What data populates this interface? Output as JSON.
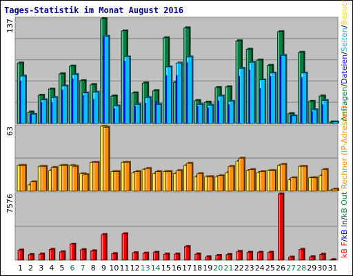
{
  "title": "Tages-Statistik im Monat August 2016",
  "legend_right": {
    "top": [
      {
        "text": "Anfragen",
        "color": "#008040"
      },
      {
        "text": "/",
        "color": "#000000"
      },
      {
        "text": "Dateien",
        "color": "#0000ff"
      },
      {
        "text": "/",
        "color": "#000000"
      },
      {
        "text": "Seiten",
        "color": "#00c0ff"
      },
      {
        "text": "/",
        "color": "#000000"
      },
      {
        "text": "Besuche",
        "color": "#ffd700"
      }
    ],
    "mid": [
      {
        "text": "Rechner (IP-Adressen)",
        "color": "#ff8c00"
      }
    ],
    "bottom": [
      {
        "text": "kB F",
        "color": "#ff0000"
      },
      {
        "text": "/",
        "color": "#000000"
      },
      {
        "text": "kB In",
        "color": "#0000ff"
      },
      {
        "text": "/",
        "color": "#000000"
      },
      {
        "text": "kB Out",
        "color": "#008040"
      }
    ]
  },
  "colors": {
    "hits": "#008040",
    "files": "#0000ff",
    "pages": "#00c0ff",
    "visits": "#ffd700",
    "sites": "#ff8c00",
    "kbytes": "#ff0000",
    "weekend_label": "#008040",
    "weekday_label": "#000000"
  },
  "chart_data": [
    {
      "type": "bar",
      "ylabel": "137",
      "ylim": [
        0,
        137
      ],
      "categories": [
        "1",
        "2",
        "3",
        "4",
        "5",
        "6",
        "7",
        "8",
        "9",
        "10",
        "11",
        "12",
        "13",
        "14",
        "15",
        "16",
        "17",
        "18",
        "19",
        "20",
        "21",
        "22",
        "23",
        "24",
        "25",
        "26",
        "27",
        "28",
        "29",
        "30",
        "31"
      ],
      "series": [
        {
          "name": "Anfragen",
          "values": [
            79,
            15,
            37,
            45,
            65,
            75,
            56,
            51,
            137,
            36,
            121,
            40,
            53,
            43,
            112,
            54,
            125,
            30,
            28,
            47,
            48,
            108,
            97,
            83,
            76,
            120,
            13,
            93,
            29,
            36,
            2
          ]
        },
        {
          "name": "Dateien",
          "values": [
            56,
            13,
            28,
            28,
            44,
            59,
            37,
            32,
            113,
            20,
            82,
            23,
            27,
            30,
            63,
            63,
            80,
            23,
            21,
            30,
            25,
            62,
            70,
            46,
            62,
            88,
            11,
            60,
            16,
            25,
            1
          ]
        },
        {
          "name": "Seiten",
          "values": [
            62,
            12,
            31,
            34,
            49,
            64,
            40,
            41,
            114,
            23,
            87,
            25,
            34,
            25,
            74,
            79,
            87,
            25,
            24,
            36,
            29,
            72,
            80,
            57,
            66,
            89,
            10,
            66,
            18,
            30,
            2
          ]
        }
      ]
    },
    {
      "type": "bar",
      "ylabel": "63",
      "ylim": [
        0,
        63
      ],
      "categories": [
        "1",
        "2",
        "3",
        "4",
        "5",
        "6",
        "7",
        "8",
        "9",
        "10",
        "11",
        "12",
        "13",
        "14",
        "15",
        "16",
        "17",
        "18",
        "19",
        "20",
        "21",
        "22",
        "23",
        "24",
        "25",
        "26",
        "27",
        "28",
        "29",
        "30",
        "31"
      ],
      "series": [
        {
          "name": "Besuche",
          "values": [
            25,
            6,
            24,
            20,
            25,
            25,
            17,
            28,
            63,
            19,
            28,
            18,
            21,
            17,
            19,
            17,
            25,
            14,
            14,
            14,
            18,
            29,
            20,
            18,
            20,
            25,
            11,
            24,
            13,
            15,
            1
          ]
        },
        {
          "name": "Rechner (IP-Adressen)",
          "values": [
            25,
            9,
            24,
            23,
            25,
            24,
            16,
            28,
            62,
            19,
            28,
            19,
            22,
            19,
            19,
            20,
            27,
            17,
            14,
            15,
            24,
            32,
            21,
            19,
            20,
            26,
            13,
            24,
            13,
            21,
            2
          ]
        }
      ]
    },
    {
      "type": "bar",
      "ylabel": "7576",
      "ylim": [
        0,
        7576
      ],
      "categories": [
        "1",
        "2",
        "3",
        "4",
        "5",
        "6",
        "7",
        "8",
        "9",
        "10",
        "11",
        "12",
        "13",
        "14",
        "15",
        "16",
        "17",
        "18",
        "19",
        "20",
        "21",
        "22",
        "23",
        "24",
        "25",
        "26",
        "27",
        "28",
        "29",
        "30",
        "31"
      ],
      "series": [
        {
          "name": "kB F",
          "values": [
            1150,
            640,
            700,
            1230,
            950,
            1830,
            1200,
            1070,
            2930,
            750,
            3020,
            850,
            800,
            900,
            700,
            700,
            1560,
            700,
            380,
            550,
            650,
            1000,
            900,
            900,
            900,
            7576,
            350,
            1230,
            380,
            670,
            60
          ]
        }
      ]
    }
  ],
  "weekend_days": [
    6,
    7,
    13,
    14,
    20,
    21,
    27,
    28
  ]
}
